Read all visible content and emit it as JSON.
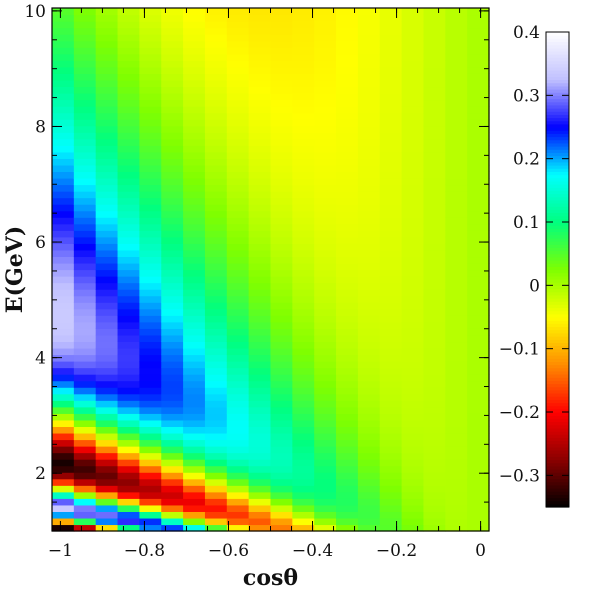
{
  "chart_data": {
    "type": "heatmap",
    "title": "",
    "xlabel": "cosθ",
    "ylabel": "E(GeV)",
    "x_range": [
      -1.02,
      0.02
    ],
    "y_range": [
      1.0,
      10.05
    ],
    "x_ticks": [
      -1,
      -0.8,
      -0.6,
      -0.4,
      -0.2,
      0
    ],
    "x_tick_labels": [
      "−1",
      "−0.8",
      "−0.6",
      "−0.4",
      "−0.2",
      "0"
    ],
    "y_ticks": [
      2,
      4,
      6,
      8,
      10
    ],
    "y_tick_labels": [
      "2",
      "4",
      "6",
      "8",
      "10"
    ],
    "x_bins": 20,
    "y_bins": 80,
    "value_description": "relative difference map, banded pattern following E ∝ |cosθ| with alternating sign; amplitude up to ~0.37 near cosθ = −1",
    "colorbar": {
      "range": [
        -0.35,
        0.4
      ],
      "ticks": [
        -0.3,
        -0.2,
        -0.1,
        0,
        0.1,
        0.2,
        0.3,
        0.4
      ],
      "tick_labels": [
        "−0.3",
        "−0.2",
        "−0.1",
        "0",
        "0.1",
        "0.2",
        "0.3",
        "0.4"
      ],
      "colors": [
        "#000000",
        "#8b0000",
        "#ff0000",
        "#ff8c00",
        "#ffff00",
        "#7fff00",
        "#00ff7f",
        "#00ffff",
        "#0000ff",
        "#c0c0ff",
        "#ffffff"
      ]
    }
  }
}
